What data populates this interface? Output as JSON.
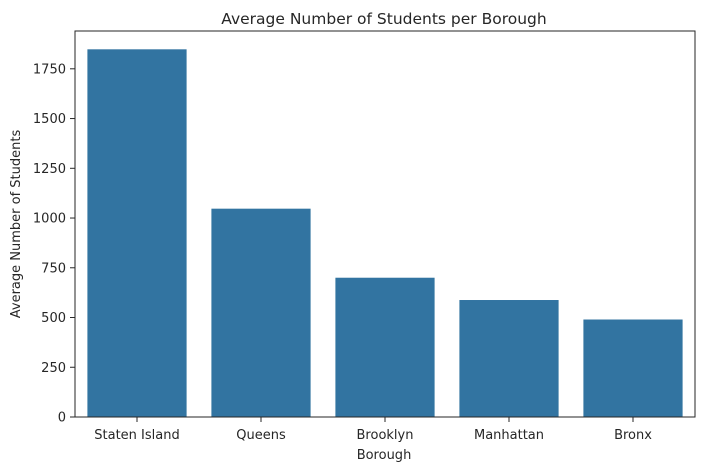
{
  "chart_data": {
    "type": "bar",
    "title": "Average Number of Students per Borough",
    "xlabel": "Borough",
    "ylabel": "Average Number of Students",
    "categories": [
      "Staten Island",
      "Queens",
      "Brooklyn",
      "Manhattan",
      "Bronx"
    ],
    "values": [
      1848,
      1047,
      700,
      588,
      490
    ],
    "ylim": [
      0,
      1940
    ],
    "yticks": [
      "0",
      "250",
      "500",
      "750",
      "1000",
      "1250",
      "1500",
      "1750"
    ],
    "bar_color": "#3274a1",
    "grid": false,
    "legend": "none"
  }
}
